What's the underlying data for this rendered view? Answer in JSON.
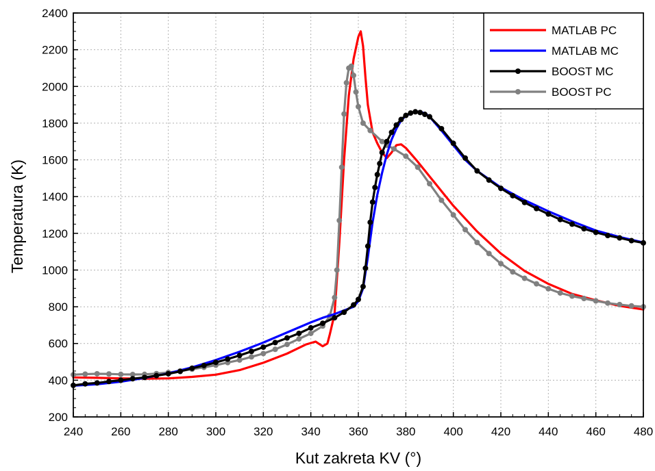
{
  "chart_data": {
    "type": "line",
    "xlabel": "Kut zakreta KV (°)",
    "ylabel": "Temperatura (K)",
    "xlim": [
      240,
      480
    ],
    "ylim": [
      200,
      2400
    ],
    "x_ticks": [
      "240",
      "260",
      "280",
      "300",
      "320",
      "340",
      "360",
      "380",
      "400",
      "420",
      "440",
      "460",
      "480"
    ],
    "y_ticks": [
      "200",
      "400",
      "600",
      "800",
      "1000",
      "1200",
      "1400",
      "1600",
      "1800",
      "2000",
      "2200",
      "2400"
    ],
    "grid": true,
    "legend_position": "top-right",
    "series": [
      {
        "name": "MATLAB PC",
        "color": "#ff0000",
        "markers": false,
        "x": [
          240,
          250,
          260,
          270,
          280,
          290,
          300,
          310,
          320,
          330,
          338,
          342,
          345,
          347,
          348,
          350,
          352,
          354,
          356,
          358,
          360,
          361,
          362,
          363,
          364,
          366,
          368,
          370,
          372,
          374,
          376,
          378,
          380,
          385,
          390,
          395,
          400,
          410,
          420,
          430,
          440,
          450,
          460,
          470,
          480
        ],
        "y": [
          415,
          413,
          410,
          408,
          410,
          418,
          430,
          455,
          495,
          545,
          595,
          610,
          585,
          600,
          650,
          760,
          1150,
          1600,
          1950,
          2150,
          2270,
          2300,
          2220,
          2050,
          1900,
          1750,
          1690,
          1640,
          1610,
          1640,
          1680,
          1685,
          1665,
          1590,
          1510,
          1430,
          1350,
          1210,
          1090,
          995,
          925,
          870,
          835,
          805,
          785
        ]
      },
      {
        "name": "MATLAB MC",
        "color": "#0000ff",
        "markers": false,
        "x": [
          240,
          250,
          260,
          270,
          280,
          290,
          300,
          310,
          320,
          330,
          340,
          345,
          350,
          355,
          358,
          360,
          362,
          364,
          366,
          368,
          370,
          372,
          374,
          376,
          378,
          380,
          383,
          385,
          388,
          390,
          395,
          400,
          405,
          410,
          420,
          430,
          440,
          450,
          460,
          470,
          480
        ],
        "y": [
          370,
          378,
          392,
          412,
          437,
          470,
          510,
          555,
          605,
          660,
          715,
          740,
          760,
          785,
          800,
          830,
          900,
          1070,
          1260,
          1410,
          1530,
          1630,
          1710,
          1770,
          1815,
          1840,
          1858,
          1862,
          1855,
          1835,
          1760,
          1680,
          1600,
          1540,
          1450,
          1380,
          1320,
          1265,
          1215,
          1180,
          1150
        ]
      },
      {
        "name": "BOOST MC",
        "color": "#000000",
        "markers": true,
        "x": [
          240,
          245,
          250,
          255,
          260,
          265,
          270,
          275,
          280,
          285,
          290,
          295,
          300,
          305,
          310,
          315,
          320,
          325,
          330,
          335,
          340,
          345,
          350,
          354,
          358,
          360,
          362,
          363,
          364,
          365,
          366,
          367,
          368,
          369,
          370,
          372,
          374,
          376,
          378,
          380,
          382,
          384,
          386,
          388,
          390,
          395,
          400,
          405,
          410,
          415,
          420,
          425,
          430,
          435,
          440,
          445,
          450,
          455,
          460,
          465,
          470,
          475,
          480
        ],
        "y": [
          372,
          380,
          385,
          393,
          400,
          408,
          415,
          425,
          435,
          448,
          465,
          480,
          497,
          515,
          535,
          557,
          580,
          605,
          630,
          655,
          685,
          710,
          740,
          770,
          810,
          840,
          910,
          1010,
          1130,
          1260,
          1370,
          1450,
          1520,
          1580,
          1640,
          1700,
          1750,
          1790,
          1820,
          1842,
          1855,
          1862,
          1858,
          1848,
          1835,
          1770,
          1690,
          1610,
          1540,
          1490,
          1445,
          1405,
          1368,
          1335,
          1305,
          1275,
          1250,
          1225,
          1205,
          1188,
          1175,
          1160,
          1148
        ]
      },
      {
        "name": "BOOST PC",
        "color": "#808080",
        "markers": true,
        "x": [
          240,
          245,
          250,
          255,
          260,
          265,
          270,
          275,
          280,
          285,
          290,
          295,
          300,
          305,
          310,
          315,
          320,
          325,
          330,
          335,
          340,
          345,
          348,
          350,
          351,
          352,
          353,
          354,
          355,
          356,
          357,
          358,
          359,
          360,
          362,
          365,
          370,
          372,
          375,
          380,
          385,
          390,
          395,
          400,
          405,
          410,
          415,
          420,
          425,
          430,
          435,
          440,
          445,
          450,
          455,
          460,
          465,
          470,
          475,
          480
        ],
        "y": [
          430,
          433,
          435,
          434,
          432,
          431,
          432,
          436,
          442,
          450,
          460,
          470,
          482,
          496,
          510,
          527,
          545,
          568,
          595,
          625,
          655,
          695,
          750,
          850,
          1000,
          1270,
          1560,
          1850,
          2020,
          2100,
          2110,
          2060,
          1970,
          1890,
          1800,
          1760,
          1700,
          1680,
          1660,
          1620,
          1560,
          1470,
          1380,
          1300,
          1220,
          1150,
          1090,
          1035,
          990,
          955,
          925,
          898,
          875,
          858,
          845,
          832,
          820,
          812,
          805,
          800
        ]
      }
    ]
  }
}
